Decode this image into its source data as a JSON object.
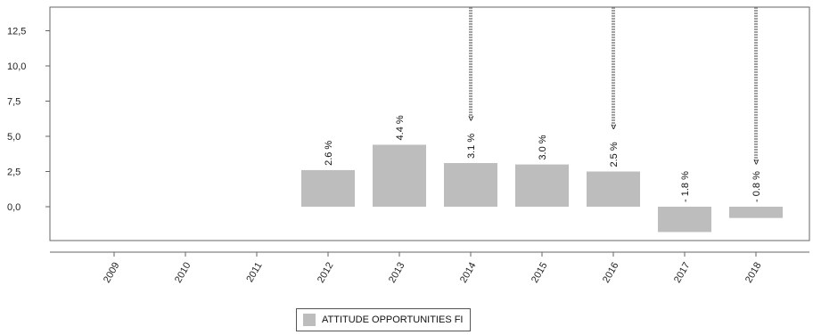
{
  "chart_data": {
    "type": "bar",
    "categories": [
      "2009",
      "2010",
      "2011",
      "2012",
      "2013",
      "2014",
      "2015",
      "2016",
      "2017",
      "2018"
    ],
    "series": [
      {
        "name": "ATTITUDE OPPORTUNITIES FI",
        "values": [
          null,
          null,
          null,
          2.6,
          4.4,
          3.1,
          3.0,
          2.5,
          -1.8,
          -0.8
        ],
        "labels": [
          "",
          "",
          "",
          "2.6 %",
          "4.4 %",
          "3.1 %",
          "3.0 %",
          "2.5 %",
          "- 1.8 %",
          "- 0.8 %"
        ],
        "color": "#bdbdbd"
      }
    ],
    "annotated_categories": [
      "2014",
      "2016",
      "2018"
    ],
    "annotation_symbol": "<",
    "ylim": [
      -2.5,
      14.5
    ],
    "yticks": [
      0.0,
      2.5,
      5.0,
      7.5,
      10.0,
      12.5
    ],
    "ytick_labels": [
      "0,0",
      "2,5",
      "5,0",
      "7,5",
      "10,0",
      "12,5"
    ],
    "title": "",
    "xlabel": "",
    "ylabel": "",
    "grid": false,
    "legend_position": "bottom"
  }
}
